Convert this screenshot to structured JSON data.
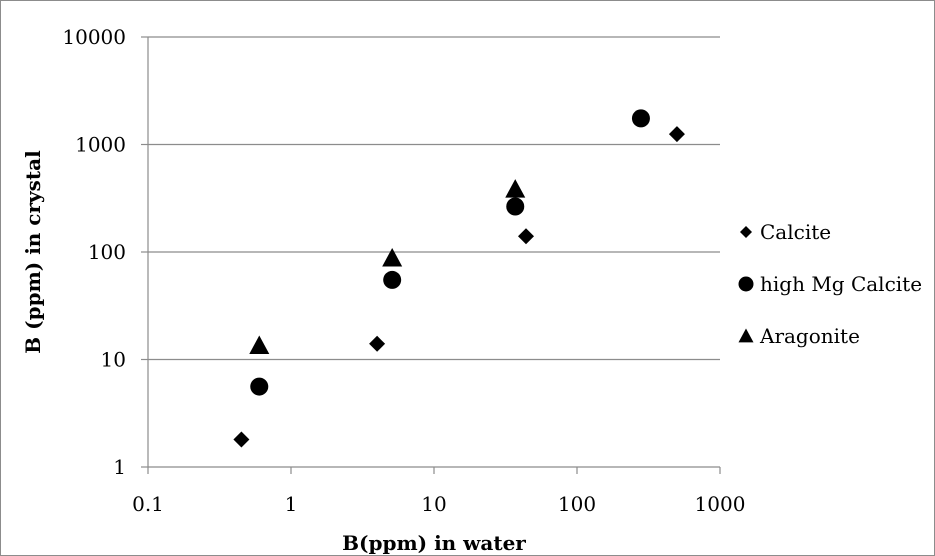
{
  "chart_data": {
    "type": "scatter",
    "title": "",
    "xlabel": "B(ppm) in water",
    "ylabel": "B (ppm) in crystal",
    "x_scale": "log",
    "y_scale": "log",
    "xlim": [
      0.1,
      1000
    ],
    "ylim": [
      1,
      10000
    ],
    "x_ticks": [
      "0.1",
      "1",
      "10",
      "100",
      "1000"
    ],
    "y_ticks": [
      "1",
      "10",
      "100",
      "1000",
      "10000"
    ],
    "grid": "horizontal major gridlines",
    "legend_position": "right",
    "series": [
      {
        "name": "Calcite",
        "marker": "diamond",
        "color": "#000000",
        "points": [
          [
            0.45,
            1.8
          ],
          [
            4,
            14
          ],
          [
            44,
            140
          ],
          [
            500,
            1250
          ]
        ]
      },
      {
        "name": "high Mg Calcite",
        "marker": "circle",
        "color": "#000000",
        "points": [
          [
            0.6,
            5.6
          ],
          [
            5.1,
            55
          ],
          [
            37,
            265
          ],
          [
            280,
            1750
          ]
        ]
      },
      {
        "name": "Aragonite",
        "marker": "triangle",
        "color": "#000000",
        "points": [
          [
            0.6,
            13.5
          ],
          [
            5.1,
            88
          ],
          [
            37,
            385
          ]
        ]
      }
    ]
  }
}
